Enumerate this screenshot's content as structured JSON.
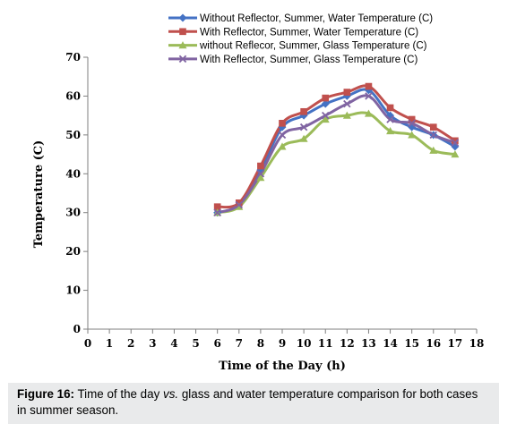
{
  "chart_data": {
    "type": "line",
    "title": "",
    "xlabel": "Time of the Day (h)",
    "ylabel": "Temperature (C)",
    "xlim": [
      0,
      18
    ],
    "ylim": [
      0,
      70
    ],
    "x_ticks": [
      0,
      1,
      2,
      3,
      4,
      5,
      6,
      7,
      8,
      9,
      10,
      11,
      12,
      13,
      14,
      15,
      16,
      17,
      18
    ],
    "y_ticks": [
      0,
      10,
      20,
      30,
      40,
      50,
      60,
      70
    ],
    "grid": false,
    "legend_position": "top",
    "x": [
      6,
      7,
      8,
      9,
      10,
      11,
      12,
      13,
      14,
      15,
      16,
      17
    ],
    "series": [
      {
        "name": "Without Reflector, Summer, Water Temperature (C)",
        "color": "#4472c4",
        "marker": "diamond",
        "values": [
          30,
          32,
          41,
          52,
          55,
          58,
          60,
          61.5,
          55,
          52,
          50,
          47
        ]
      },
      {
        "name": "With Reflector, Summer, Water Temperature (C)",
        "color": "#c0504d",
        "marker": "square",
        "values": [
          31.5,
          32.5,
          42,
          53,
          56,
          59.5,
          61,
          62.5,
          57,
          54,
          52,
          48.5
        ]
      },
      {
        "name": "without Reflecor, Summer, Glass Temperature (C)",
        "color": "#9bbb59",
        "marker": "triangle",
        "values": [
          30,
          31.5,
          39,
          47,
          49,
          54,
          55,
          55.5,
          51,
          50,
          46,
          45
        ]
      },
      {
        "name": "With Reflector, Summer, Glass Temperature (C)",
        "color": "#8064a2",
        "marker": "x",
        "values": [
          30,
          32,
          40,
          50,
          52,
          55,
          58,
          60,
          54,
          53,
          50,
          48
        ]
      }
    ]
  },
  "caption": {
    "label": "Figure 16:",
    "text_before": " Time of the day ",
    "text_italic": "vs.",
    "text_after": " glass and water temperature comparison for both cases in summer season."
  }
}
